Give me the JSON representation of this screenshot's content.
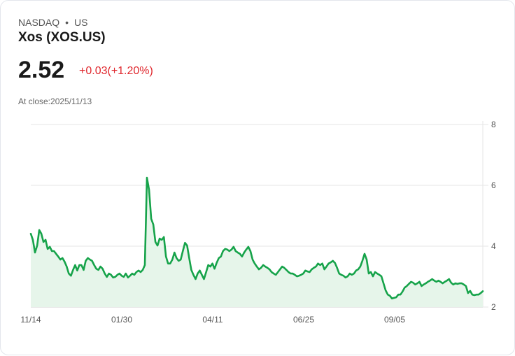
{
  "header": {
    "exchange": "NASDAQ",
    "separator": "•",
    "region": "US",
    "name": "Xos (XOS.US)"
  },
  "quote": {
    "price": "2.52",
    "change": "+0.03(+1.20%)",
    "status": "At close:2025/11/13"
  },
  "colors": {
    "line": "#16a34a",
    "fill": "#e6f5ea",
    "down": "#e0282e",
    "grid": "#e5e5e5"
  },
  "chart_data": {
    "type": "area",
    "ylim": [
      2,
      8
    ],
    "yticks": [
      "8",
      "6",
      "4",
      "2"
    ],
    "ytick_values": [
      8,
      6,
      4,
      2
    ],
    "xticks": [
      "11/14",
      "01/30",
      "04/11",
      "06/25",
      "09/05"
    ],
    "values": [
      4.41,
      4.21,
      3.79,
      4.02,
      4.53,
      4.41,
      4.14,
      4.21,
      3.91,
      3.98,
      3.84,
      3.84,
      3.75,
      3.66,
      3.56,
      3.61,
      3.49,
      3.33,
      3.1,
      3.03,
      3.22,
      3.38,
      3.2,
      3.38,
      3.38,
      3.22,
      3.52,
      3.61,
      3.56,
      3.52,
      3.38,
      3.26,
      3.22,
      3.33,
      3.26,
      3.1,
      2.99,
      3.1,
      3.06,
      2.97,
      2.99,
      3.06,
      3.1,
      3.03,
      2.99,
      3.1,
      2.97,
      3.03,
      3.1,
      3.06,
      3.15,
      3.2,
      3.15,
      3.22,
      3.38,
      6.25,
      5.86,
      4.9,
      4.71,
      4.14,
      4.02,
      4.25,
      4.21,
      4.3,
      3.66,
      3.43,
      3.43,
      3.56,
      3.79,
      3.61,
      3.52,
      3.56,
      3.84,
      4.11,
      4.02,
      3.61,
      3.22,
      3.06,
      2.92,
      3.1,
      3.2,
      3.06,
      2.92,
      3.15,
      3.38,
      3.33,
      3.43,
      3.26,
      3.45,
      3.61,
      3.66,
      3.84,
      3.91,
      3.89,
      3.84,
      3.89,
      3.98,
      3.84,
      3.79,
      3.75,
      3.66,
      3.79,
      3.89,
      3.98,
      3.84,
      3.56,
      3.43,
      3.33,
      3.24,
      3.29,
      3.38,
      3.33,
      3.29,
      3.24,
      3.15,
      3.1,
      3.06,
      3.15,
      3.24,
      3.33,
      3.29,
      3.22,
      3.15,
      3.1,
      3.1,
      3.06,
      3.01,
      3.03,
      3.06,
      3.1,
      3.2,
      3.17,
      3.15,
      3.24,
      3.29,
      3.33,
      3.43,
      3.38,
      3.43,
      3.24,
      3.33,
      3.43,
      3.47,
      3.52,
      3.45,
      3.29,
      3.1,
      3.06,
      3.03,
      2.97,
      3.01,
      3.1,
      3.06,
      3.1,
      3.2,
      3.24,
      3.33,
      3.52,
      3.75,
      3.56,
      3.1,
      3.15,
      3.01,
      3.15,
      3.1,
      3.06,
      3.01,
      2.78,
      2.55,
      2.41,
      2.37,
      2.28,
      2.3,
      2.32,
      2.41,
      2.41,
      2.51,
      2.64,
      2.69,
      2.76,
      2.83,
      2.8,
      2.74,
      2.78,
      2.83,
      2.69,
      2.74,
      2.78,
      2.83,
      2.87,
      2.92,
      2.87,
      2.83,
      2.87,
      2.83,
      2.78,
      2.83,
      2.87,
      2.92,
      2.8,
      2.74,
      2.78,
      2.76,
      2.78,
      2.78,
      2.74,
      2.69,
      2.46,
      2.53,
      2.41,
      2.39,
      2.41,
      2.41,
      2.46,
      2.52
    ]
  }
}
